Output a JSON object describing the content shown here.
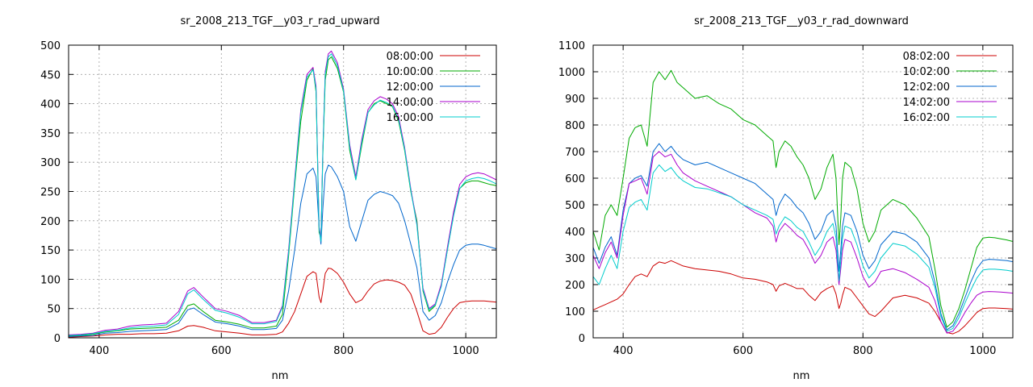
{
  "figure": {
    "background": "#ffffff"
  },
  "chart_data": [
    {
      "type": "line",
      "title": "sr_2008_213_TGF__y03_r_rad_upward",
      "xlabel": "nm",
      "ylabel": "",
      "xlim": [
        350,
        1050
      ],
      "ylim": [
        0,
        500
      ],
      "xticks": [
        400,
        600,
        800,
        1000
      ],
      "yticks": [
        0,
        50,
        100,
        150,
        200,
        250,
        300,
        350,
        400,
        450,
        500
      ],
      "grid": true,
      "legend_position": "top-right",
      "x": [
        350,
        370,
        390,
        410,
        430,
        450,
        470,
        490,
        510,
        530,
        545,
        555,
        570,
        590,
        610,
        630,
        650,
        670,
        690,
        700,
        710,
        720,
        730,
        740,
        750,
        755,
        760,
        763,
        766,
        770,
        775,
        780,
        790,
        800,
        810,
        820,
        830,
        840,
        850,
        860,
        870,
        880,
        890,
        900,
        910,
        920,
        930,
        940,
        950,
        960,
        970,
        980,
        990,
        1000,
        1010,
        1020,
        1030,
        1040,
        1050
      ],
      "series": [
        {
          "name": "08:00:00",
          "color": "#cc0000",
          "values": [
            1,
            2,
            3,
            5,
            6,
            6,
            7,
            7,
            8,
            12,
            20,
            21,
            18,
            12,
            10,
            8,
            5,
            5,
            6,
            10,
            25,
            45,
            75,
            105,
            113,
            110,
            70,
            60,
            80,
            110,
            119,
            118,
            110,
            95,
            75,
            60,
            65,
            80,
            92,
            97,
            99,
            98,
            95,
            90,
            75,
            45,
            12,
            6,
            8,
            18,
            35,
            50,
            60,
            62,
            63,
            63,
            63,
            62,
            61
          ]
        },
        {
          "name": "10:00:00",
          "color": "#00aa00",
          "values": [
            3,
            4,
            6,
            10,
            12,
            15,
            16,
            17,
            18,
            30,
            55,
            58,
            45,
            30,
            27,
            23,
            17,
            17,
            20,
            40,
            140,
            260,
            370,
            440,
            460,
            420,
            180,
            170,
            310,
            440,
            475,
            480,
            460,
            420,
            320,
            270,
            330,
            385,
            400,
            405,
            400,
            395,
            370,
            320,
            250,
            200,
            80,
            45,
            55,
            90,
            150,
            210,
            255,
            265,
            268,
            268,
            265,
            262,
            260
          ]
        },
        {
          "name": "12:00:00",
          "color": "#0066cc",
          "values": [
            2,
            3,
            4,
            8,
            9,
            11,
            12,
            13,
            14,
            25,
            48,
            51,
            40,
            27,
            24,
            20,
            14,
            14,
            16,
            30,
            80,
            150,
            230,
            280,
            290,
            275,
            190,
            160,
            220,
            280,
            295,
            292,
            275,
            250,
            190,
            165,
            200,
            235,
            245,
            250,
            247,
            243,
            230,
            200,
            160,
            120,
            45,
            30,
            38,
            60,
            95,
            125,
            150,
            158,
            160,
            160,
            158,
            155,
            152
          ]
        },
        {
          "name": "14:00:00",
          "color": "#aa00cc",
          "values": [
            5,
            6,
            8,
            13,
            15,
            20,
            22,
            23,
            25,
            45,
            80,
            86,
            70,
            50,
            45,
            38,
            26,
            26,
            30,
            55,
            150,
            270,
            390,
            450,
            462,
            430,
            190,
            170,
            320,
            455,
            485,
            490,
            470,
            425,
            330,
            275,
            340,
            390,
            405,
            412,
            408,
            400,
            378,
            325,
            255,
            195,
            85,
            50,
            58,
            92,
            155,
            215,
            262,
            275,
            280,
            282,
            280,
            275,
            270
          ]
        },
        {
          "name": "16:00:00",
          "color": "#00cccc",
          "values": [
            4,
            5,
            7,
            11,
            13,
            17,
            19,
            20,
            22,
            40,
            75,
            82,
            66,
            47,
            42,
            35,
            24,
            24,
            28,
            52,
            145,
            265,
            385,
            445,
            458,
            425,
            185,
            165,
            315,
            450,
            480,
            485,
            465,
            422,
            325,
            270,
            335,
            385,
            398,
            406,
            402,
            396,
            373,
            322,
            252,
            192,
            82,
            48,
            56,
            88,
            150,
            208,
            255,
            268,
            272,
            274,
            272,
            268,
            263
          ]
        }
      ]
    },
    {
      "type": "line",
      "title": "sr_2008_213_TGF__y03_r_rad_downward",
      "xlabel": "nm",
      "ylabel": "",
      "xlim": [
        350,
        1050
      ],
      "ylim": [
        0,
        1100
      ],
      "xticks": [
        400,
        600,
        800,
        1000
      ],
      "yticks": [
        0,
        100,
        200,
        300,
        400,
        500,
        600,
        700,
        800,
        900,
        1000,
        1100
      ],
      "grid": true,
      "legend_position": "top-right",
      "x": [
        350,
        360,
        370,
        380,
        390,
        400,
        410,
        420,
        430,
        440,
        450,
        460,
        470,
        480,
        490,
        500,
        520,
        540,
        560,
        580,
        600,
        620,
        640,
        650,
        655,
        660,
        670,
        680,
        690,
        700,
        710,
        720,
        730,
        740,
        750,
        755,
        760,
        763,
        766,
        770,
        780,
        790,
        800,
        810,
        820,
        830,
        850,
        870,
        890,
        910,
        920,
        930,
        940,
        950,
        960,
        970,
        980,
        990,
        1000,
        1010,
        1020,
        1030,
        1040,
        1050
      ],
      "series": [
        {
          "name": "08:02:00",
          "color": "#cc0000",
          "values": [
            105,
            115,
            125,
            135,
            145,
            165,
            200,
            230,
            240,
            230,
            270,
            285,
            280,
            290,
            280,
            270,
            260,
            255,
            250,
            240,
            225,
            220,
            210,
            200,
            175,
            195,
            205,
            195,
            185,
            185,
            160,
            140,
            170,
            185,
            195,
            165,
            110,
            130,
            160,
            190,
            180,
            150,
            120,
            90,
            80,
            100,
            150,
            160,
            150,
            130,
            100,
            60,
            20,
            15,
            25,
            45,
            70,
            95,
            110,
            112,
            112,
            111,
            110,
            108
          ]
        },
        {
          "name": "10:02:00",
          "color": "#00aa00",
          "values": [
            400,
            330,
            460,
            500,
            460,
            600,
            750,
            790,
            800,
            720,
            960,
            1000,
            970,
            1005,
            960,
            940,
            900,
            910,
            880,
            860,
            820,
            800,
            760,
            740,
            640,
            700,
            740,
            720,
            680,
            650,
            600,
            520,
            560,
            640,
            690,
            600,
            350,
            450,
            600,
            660,
            640,
            560,
            430,
            360,
            400,
            480,
            520,
            500,
            450,
            380,
            260,
            120,
            40,
            60,
            110,
            180,
            260,
            340,
            375,
            378,
            376,
            372,
            368,
            362
          ]
        },
        {
          "name": "12:02:00",
          "color": "#0066cc",
          "values": [
            340,
            280,
            340,
            380,
            310,
            480,
            580,
            600,
            610,
            570,
            700,
            730,
            700,
            720,
            690,
            670,
            650,
            660,
            640,
            620,
            600,
            580,
            540,
            520,
            460,
            500,
            540,
            520,
            490,
            470,
            430,
            370,
            400,
            460,
            480,
            420,
            250,
            330,
            420,
            470,
            460,
            400,
            310,
            260,
            290,
            350,
            400,
            390,
            360,
            300,
            210,
            90,
            30,
            45,
            90,
            150,
            210,
            260,
            290,
            295,
            294,
            292,
            290,
            286
          ]
        },
        {
          "name": "14:02:00",
          "color": "#aa00cc",
          "values": [
            310,
            260,
            320,
            360,
            300,
            460,
            580,
            590,
            600,
            540,
            680,
            700,
            680,
            690,
            650,
            620,
            590,
            570,
            550,
            530,
            500,
            470,
            450,
            420,
            360,
            400,
            430,
            410,
            385,
            370,
            330,
            280,
            310,
            360,
            380,
            330,
            200,
            260,
            330,
            370,
            360,
            300,
            230,
            190,
            210,
            250,
            260,
            245,
            220,
            190,
            140,
            60,
            18,
            25,
            55,
            95,
            130,
            160,
            172,
            174,
            173,
            172,
            170,
            168
          ]
        },
        {
          "name": "16:02:00",
          "color": "#00cccc",
          "values": [
            230,
            200,
            260,
            310,
            260,
            400,
            490,
            510,
            520,
            480,
            620,
            650,
            625,
            640,
            610,
            590,
            565,
            560,
            545,
            530,
            500,
            480,
            460,
            445,
            390,
            420,
            455,
            440,
            415,
            400,
            360,
            310,
            345,
            400,
            430,
            375,
            215,
            290,
            375,
            420,
            410,
            350,
            270,
            225,
            250,
            300,
            355,
            345,
            315,
            265,
            190,
            80,
            25,
            35,
            75,
            130,
            180,
            225,
            255,
            258,
            258,
            256,
            254,
            250
          ]
        }
      ]
    }
  ]
}
